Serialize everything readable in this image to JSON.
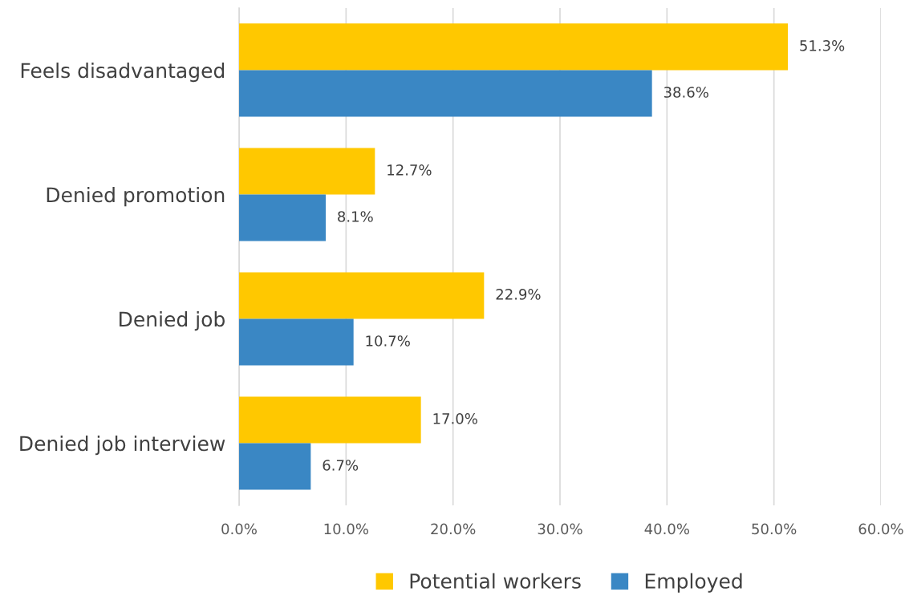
{
  "chart_data": {
    "type": "bar",
    "orientation": "horizontal",
    "categories": [
      "Feels disadvantaged",
      "Denied promotion",
      "Denied job",
      "Denied job interview"
    ],
    "series": [
      {
        "name": "Potential workers",
        "color": "#ffc800",
        "values": [
          51.3,
          12.7,
          22.9,
          17.0
        ],
        "value_labels": [
          "51.3%",
          "12.7%",
          "22.9%",
          "17.0%"
        ]
      },
      {
        "name": "Employed",
        "color": "#3a87c4",
        "values": [
          38.6,
          8.1,
          10.7,
          6.7
        ],
        "value_labels": [
          "38.6%",
          "8.1%",
          "10.7%",
          "6.7%"
        ]
      }
    ],
    "xlim": [
      0,
      60
    ],
    "xticks": [
      {
        "value": 0,
        "label": "0.0%"
      },
      {
        "value": 10,
        "label": "10.0%"
      },
      {
        "value": 20,
        "label": "20.0%"
      },
      {
        "value": 30,
        "label": "30.0%"
      },
      {
        "value": 40,
        "label": "40.0%"
      },
      {
        "value": 50,
        "label": "50.0%"
      },
      {
        "value": 60,
        "label": "60.0%"
      }
    ],
    "grid": "x",
    "legend": "bottom"
  }
}
